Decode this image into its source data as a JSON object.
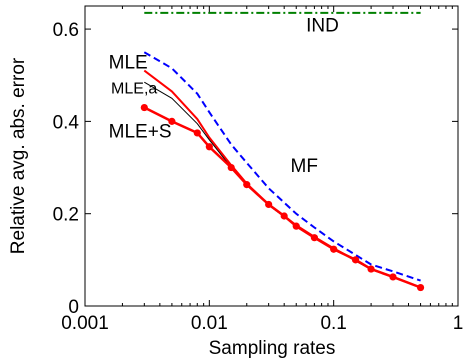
{
  "chart_data": {
    "type": "line",
    "xscale": "log",
    "xlim": [
      0.001,
      1
    ],
    "ylim": [
      0,
      0.65
    ],
    "xlabel": "Sampling rates",
    "ylabel": "Relative avg. abs. error",
    "xticks": [
      0.001,
      0.01,
      0.1,
      1
    ],
    "xtick_labels": [
      "0.001",
      "0.01",
      "0.1",
      "1"
    ],
    "yticks": [
      0,
      0.2,
      0.4,
      0.6
    ],
    "ytick_labels": [
      "0",
      "0.2",
      "0.4",
      "0.6"
    ],
    "grid": false,
    "series": [
      {
        "name": "IND",
        "color": "#008000",
        "style": "dashdot",
        "x": [
          0.003,
          0.5
        ],
        "y": [
          0.635,
          0.635
        ]
      },
      {
        "name": "MF",
        "color": "#0000ff",
        "style": "dashed",
        "x": [
          0.003,
          0.005,
          0.008,
          0.01,
          0.015,
          0.02,
          0.03,
          0.05,
          0.07,
          0.1,
          0.2,
          0.3,
          0.5
        ],
        "y": [
          0.55,
          0.515,
          0.46,
          0.42,
          0.35,
          0.31,
          0.255,
          0.2,
          0.17,
          0.14,
          0.09,
          0.075,
          0.055
        ]
      },
      {
        "name": "MLE",
        "color": "#ff0000",
        "style": "solid",
        "x": [
          0.003,
          0.005,
          0.008,
          0.01,
          0.015,
          0.02,
          0.03,
          0.05,
          0.07,
          0.1,
          0.2,
          0.3,
          0.5
        ],
        "y": [
          0.51,
          0.465,
          0.405,
          0.365,
          0.305,
          0.265,
          0.22,
          0.175,
          0.15,
          0.125,
          0.08,
          0.063,
          0.04
        ]
      },
      {
        "name": "MLE,a",
        "color": "#000000",
        "style": "solid",
        "x": [
          0.003,
          0.005,
          0.008,
          0.01,
          0.015,
          0.02,
          0.03,
          0.05,
          0.07,
          0.1,
          0.2,
          0.3,
          0.5
        ],
        "y": [
          0.485,
          0.45,
          0.395,
          0.36,
          0.3,
          0.262,
          0.218,
          0.174,
          0.149,
          0.124,
          0.079,
          0.062,
          0.04
        ]
      },
      {
        "name": "MLE+S",
        "color": "#ff0000",
        "style": "solid-markers",
        "x": [
          0.003,
          0.005,
          0.008,
          0.01,
          0.015,
          0.02,
          0.03,
          0.04,
          0.05,
          0.07,
          0.1,
          0.15,
          0.2,
          0.3,
          0.5
        ],
        "y": [
          0.43,
          0.4,
          0.375,
          0.345,
          0.3,
          0.263,
          0.22,
          0.195,
          0.173,
          0.148,
          0.123,
          0.1,
          0.08,
          0.063,
          0.04
        ]
      }
    ],
    "annotations": [
      {
        "text": "IND",
        "x": 0.06,
        "y": 0.595,
        "size": "normal"
      },
      {
        "text": "MLE",
        "x": 0.00155,
        "y": 0.515,
        "size": "normal"
      },
      {
        "text": "MLE,a",
        "x": 0.00162,
        "y": 0.46,
        "size": "small"
      },
      {
        "text": "MLE+S",
        "x": 0.00155,
        "y": 0.365,
        "size": "normal"
      },
      {
        "text": "MF",
        "x": 0.045,
        "y": 0.29,
        "size": "normal"
      }
    ]
  }
}
